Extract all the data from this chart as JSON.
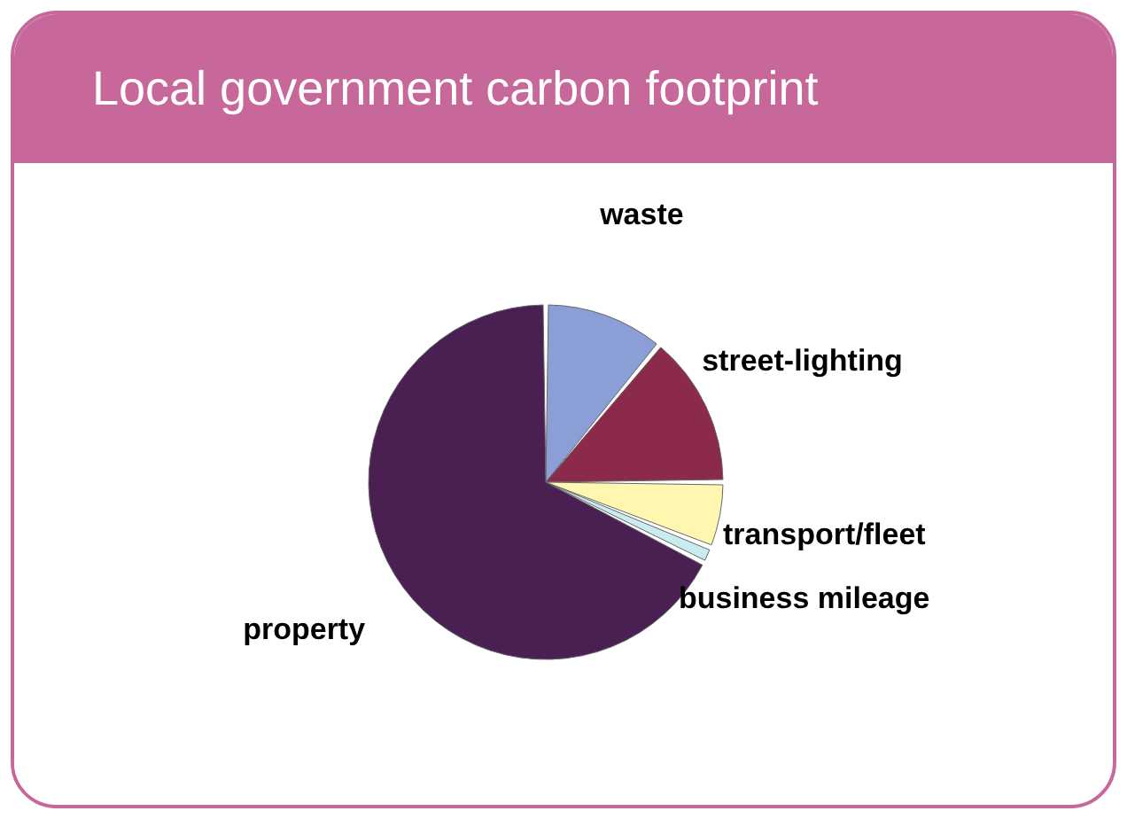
{
  "chart_data": {
    "type": "pie",
    "title": "Local government carbon footprint",
    "categories": [
      "waste",
      "street-lighting",
      "transport/fleet",
      "business mileage",
      "property"
    ],
    "values": [
      11,
      14,
      6,
      1.5,
      67.5
    ],
    "colors": [
      "#8b9fd6",
      "#8b2a4a",
      "#fff7b0",
      "#c8ecf0",
      "#4a1f52"
    ]
  }
}
